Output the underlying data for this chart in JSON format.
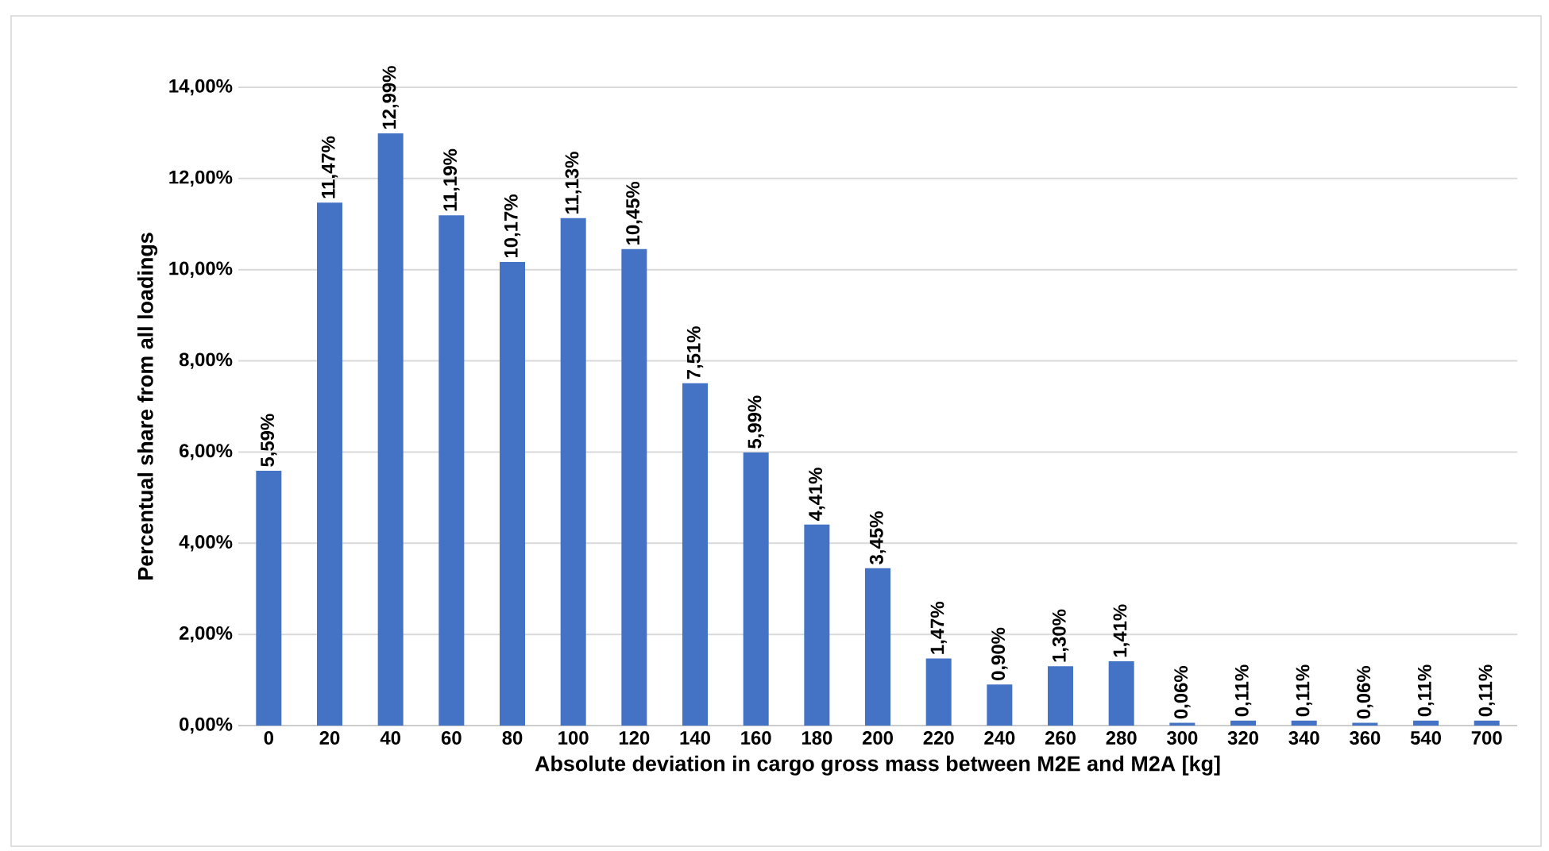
{
  "chart_data": {
    "type": "bar",
    "xlabel": "Absolute deviation in cargo gross mass between M2E and M2A [kg]",
    "ylabel": "Percentual share from all loadings",
    "categories": [
      "0",
      "20",
      "40",
      "60",
      "80",
      "100",
      "120",
      "140",
      "160",
      "180",
      "200",
      "220",
      "240",
      "260",
      "280",
      "300",
      "320",
      "340",
      "360",
      "540",
      "700"
    ],
    "values": [
      5.59,
      11.47,
      12.99,
      11.19,
      10.17,
      11.13,
      10.45,
      7.51,
      5.99,
      4.41,
      3.45,
      1.47,
      0.9,
      1.3,
      1.41,
      0.06,
      0.11,
      0.11,
      0.06,
      0.11,
      0.11
    ],
    "value_labels": [
      "5,59%",
      "11,47%",
      "12,99%",
      "11,19%",
      "10,17%",
      "11,13%",
      "10,45%",
      "7,51%",
      "5,99%",
      "4,41%",
      "3,45%",
      "1,47%",
      "0,90%",
      "1,30%",
      "1,41%",
      "0,06%",
      "0,11%",
      "0,11%",
      "0,06%",
      "0,11%",
      "0,11%"
    ],
    "color": "#4472c4",
    "ylim": [
      0,
      14
    ],
    "yticks": [
      {
        "value": 0,
        "label": "0,00%"
      },
      {
        "value": 2,
        "label": "2,00%"
      },
      {
        "value": 4,
        "label": "4,00%"
      },
      {
        "value": 6,
        "label": "6,00%"
      },
      {
        "value": 8,
        "label": "8,00%"
      },
      {
        "value": 10,
        "label": "10,00%"
      },
      {
        "value": 12,
        "label": "12,00%"
      },
      {
        "value": 14,
        "label": "14,00%"
      }
    ],
    "grid": "y"
  }
}
